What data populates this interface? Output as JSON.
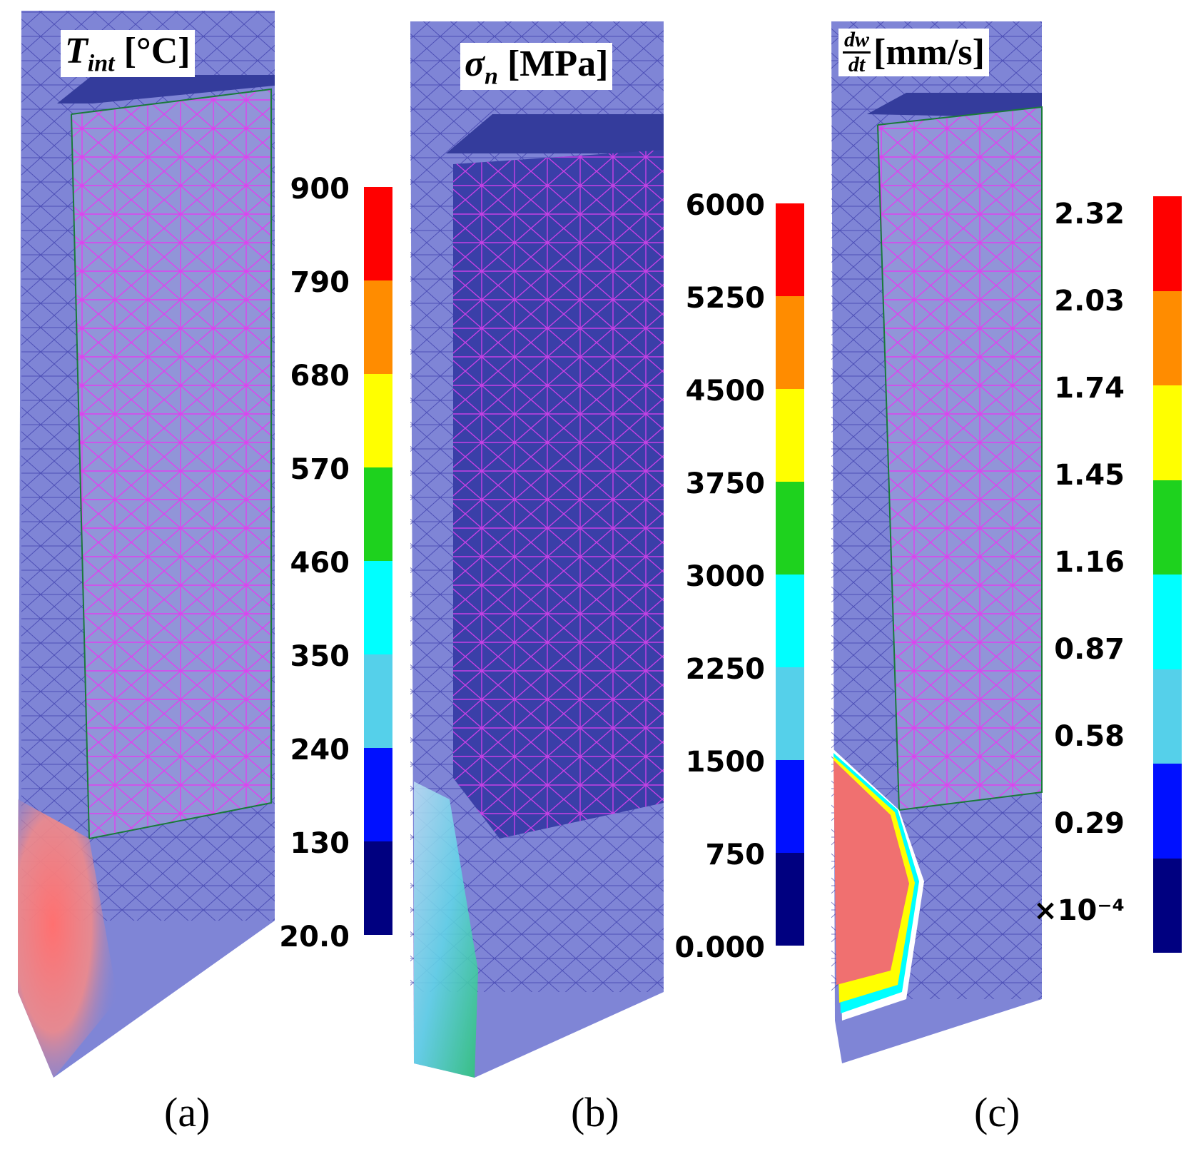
{
  "panels": [
    {
      "caption": "(a)",
      "quantity": "T",
      "subscript": "int",
      "unit": "[°C]",
      "ticks": [
        "900",
        "790",
        "680",
        "570",
        "460",
        "350",
        "240",
        "130",
        "20.0"
      ]
    },
    {
      "caption": "(b)",
      "quantity": "σ",
      "subscript": "n",
      "unit": "[MPa]",
      "ticks": [
        "6000",
        "5250",
        "4500",
        "3750",
        "3000",
        "2250",
        "1500",
        "750",
        "0.000"
      ]
    },
    {
      "caption": "(c)",
      "frac_num": "dw",
      "frac_den": "dt",
      "unit": "[mm/s]",
      "ticks": [
        "2.32",
        "2.03",
        "1.74",
        "1.45",
        "1.16",
        "0.87",
        "0.58",
        "0.29",
        "×10⁻⁴"
      ]
    }
  ],
  "colorbar_colors": [
    "#ff0000",
    "#ff8c00",
    "#ffff00",
    "#1ed21e",
    "#00ffff",
    "#55d0ea",
    "#0010ff",
    "#000080"
  ]
}
